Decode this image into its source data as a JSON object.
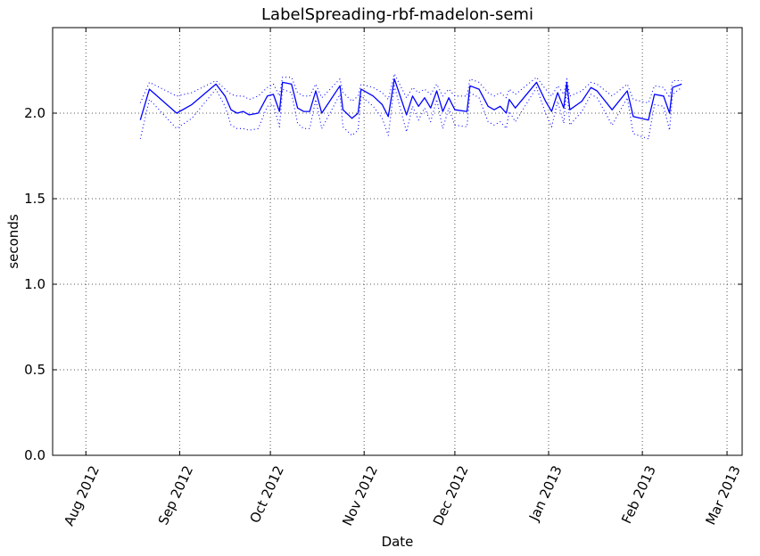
{
  "chart_data": {
    "type": "line",
    "title": "LabelSpreading-rbf-madelon-semi",
    "xlabel": "Date",
    "ylabel": "seconds",
    "x_axis": "date",
    "xlim": [
      "2012-07-21",
      "2013-03-06"
    ],
    "ylim": [
      0.0,
      2.5
    ],
    "grid": true,
    "x_ticks": [
      {
        "date": "2012-08-01",
        "label": "Aug 2012"
      },
      {
        "date": "2012-09-01",
        "label": "Sep 2012"
      },
      {
        "date": "2012-10-01",
        "label": "Oct 2012"
      },
      {
        "date": "2012-11-01",
        "label": "Nov 2012"
      },
      {
        "date": "2012-12-01",
        "label": "Dec 2012"
      },
      {
        "date": "2013-01-01",
        "label": "Jan 2013"
      },
      {
        "date": "2013-02-01",
        "label": "Feb 2013"
      },
      {
        "date": "2013-03-01",
        "label": "Mar 2013"
      }
    ],
    "y_ticks": [
      0.0,
      0.5,
      1.0,
      1.5,
      2.0
    ],
    "y_tick_labels": [
      "0.0",
      "0.5",
      "1.0",
      "1.5",
      "2.0"
    ],
    "colors": {
      "series": "#0000ff",
      "grid": "#555555"
    },
    "series": [
      {
        "style": "solid",
        "points": [
          [
            "2012-08-19",
            1.96
          ],
          [
            "2012-08-22",
            2.14
          ],
          [
            "2012-08-31",
            2.0
          ],
          [
            "2012-09-05",
            2.05
          ],
          [
            "2012-09-13",
            2.17
          ],
          [
            "2012-09-16",
            2.1
          ],
          [
            "2012-09-18",
            2.02
          ],
          [
            "2012-09-20",
            2.0
          ],
          [
            "2012-09-22",
            2.01
          ],
          [
            "2012-09-24",
            1.99
          ],
          [
            "2012-09-27",
            2.0
          ],
          [
            "2012-09-30",
            2.1
          ],
          [
            "2012-10-02",
            2.11
          ],
          [
            "2012-10-04",
            2.01
          ],
          [
            "2012-10-05",
            2.18
          ],
          [
            "2012-10-08",
            2.17
          ],
          [
            "2012-10-10",
            2.03
          ],
          [
            "2012-10-12",
            2.01
          ],
          [
            "2012-10-14",
            2.01
          ],
          [
            "2012-10-16",
            2.13
          ],
          [
            "2012-10-18",
            2.0
          ],
          [
            "2012-10-24",
            2.16
          ],
          [
            "2012-10-25",
            2.02
          ],
          [
            "2012-10-28",
            1.97
          ],
          [
            "2012-10-30",
            2.0
          ],
          [
            "2012-10-31",
            2.14
          ],
          [
            "2012-11-04",
            2.1
          ],
          [
            "2012-11-07",
            2.05
          ],
          [
            "2012-11-09",
            1.98
          ],
          [
            "2012-11-11",
            2.2
          ],
          [
            "2012-11-15",
            1.99
          ],
          [
            "2012-11-17",
            2.1
          ],
          [
            "2012-11-19",
            2.04
          ],
          [
            "2012-11-21",
            2.09
          ],
          [
            "2012-11-23",
            2.03
          ],
          [
            "2012-11-25",
            2.13
          ],
          [
            "2012-11-27",
            2.01
          ],
          [
            "2012-11-29",
            2.09
          ],
          [
            "2012-12-01",
            2.02
          ],
          [
            "2012-12-05",
            2.01
          ],
          [
            "2012-12-06",
            2.16
          ],
          [
            "2012-12-09",
            2.14
          ],
          [
            "2012-12-12",
            2.04
          ],
          [
            "2012-12-14",
            2.02
          ],
          [
            "2012-12-16",
            2.04
          ],
          [
            "2012-12-18",
            2.0
          ],
          [
            "2012-12-19",
            2.08
          ],
          [
            "2012-12-21",
            2.03
          ],
          [
            "2012-12-28",
            2.18
          ],
          [
            "2012-12-31",
            2.07
          ],
          [
            "2013-01-02",
            2.01
          ],
          [
            "2013-01-04",
            2.12
          ],
          [
            "2013-01-06",
            2.03
          ],
          [
            "2013-01-07",
            2.18
          ],
          [
            "2013-01-08",
            2.02
          ],
          [
            "2013-01-12",
            2.07
          ],
          [
            "2013-01-15",
            2.15
          ],
          [
            "2013-01-17",
            2.13
          ],
          [
            "2013-01-22",
            2.02
          ],
          [
            "2013-01-27",
            2.13
          ],
          [
            "2013-01-29",
            1.98
          ],
          [
            "2013-02-03",
            1.96
          ],
          [
            "2013-02-05",
            2.11
          ],
          [
            "2013-02-08",
            2.1
          ],
          [
            "2013-02-10",
            2.0
          ],
          [
            "2013-02-11",
            2.15
          ],
          [
            "2013-02-14",
            2.17
          ]
        ]
      },
      {
        "style": "dotted",
        "points": [
          [
            "2012-08-19",
            2.06
          ],
          [
            "2012-08-22",
            2.18
          ],
          [
            "2012-08-31",
            2.1
          ],
          [
            "2012-09-05",
            2.12
          ],
          [
            "2012-09-13",
            2.19
          ],
          [
            "2012-09-16",
            2.14
          ],
          [
            "2012-09-18",
            2.11
          ],
          [
            "2012-09-20",
            2.1
          ],
          [
            "2012-09-22",
            2.1
          ],
          [
            "2012-09-24",
            2.08
          ],
          [
            "2012-09-27",
            2.1
          ],
          [
            "2012-09-30",
            2.15
          ],
          [
            "2012-10-02",
            2.17
          ],
          [
            "2012-10-04",
            2.1
          ],
          [
            "2012-10-05",
            2.21
          ],
          [
            "2012-10-08",
            2.21
          ],
          [
            "2012-10-10",
            2.12
          ],
          [
            "2012-10-12",
            2.1
          ],
          [
            "2012-10-14",
            2.1
          ],
          [
            "2012-10-16",
            2.17
          ],
          [
            "2012-10-18",
            2.09
          ],
          [
            "2012-10-24",
            2.2
          ],
          [
            "2012-10-25",
            2.12
          ],
          [
            "2012-10-28",
            2.07
          ],
          [
            "2012-10-30",
            2.1
          ],
          [
            "2012-10-31",
            2.17
          ],
          [
            "2012-11-04",
            2.15
          ],
          [
            "2012-11-07",
            2.12
          ],
          [
            "2012-11-09",
            2.08
          ],
          [
            "2012-11-11",
            2.23
          ],
          [
            "2012-11-15",
            2.09
          ],
          [
            "2012-11-17",
            2.15
          ],
          [
            "2012-11-19",
            2.12
          ],
          [
            "2012-11-21",
            2.14
          ],
          [
            "2012-11-23",
            2.11
          ],
          [
            "2012-11-25",
            2.17
          ],
          [
            "2012-11-27",
            2.1
          ],
          [
            "2012-11-29",
            2.14
          ],
          [
            "2012-12-01",
            2.1
          ],
          [
            "2012-12-05",
            2.1
          ],
          [
            "2012-12-06",
            2.2
          ],
          [
            "2012-12-09",
            2.18
          ],
          [
            "2012-12-12",
            2.12
          ],
          [
            "2012-12-14",
            2.1
          ],
          [
            "2012-12-16",
            2.12
          ],
          [
            "2012-12-18",
            2.09
          ],
          [
            "2012-12-19",
            2.14
          ],
          [
            "2012-12-21",
            2.11
          ],
          [
            "2012-12-28",
            2.21
          ],
          [
            "2012-12-31",
            2.14
          ],
          [
            "2013-01-02",
            2.1
          ],
          [
            "2013-01-04",
            2.16
          ],
          [
            "2013-01-06",
            2.11
          ],
          [
            "2013-01-07",
            2.2
          ],
          [
            "2013-01-08",
            2.1
          ],
          [
            "2013-01-12",
            2.13
          ],
          [
            "2013-01-15",
            2.18
          ],
          [
            "2013-01-17",
            2.17
          ],
          [
            "2013-01-22",
            2.1
          ],
          [
            "2013-01-27",
            2.17
          ],
          [
            "2013-01-29",
            2.08
          ],
          [
            "2013-02-03",
            2.06
          ],
          [
            "2013-02-05",
            2.16
          ],
          [
            "2013-02-08",
            2.15
          ],
          [
            "2013-02-10",
            2.09
          ],
          [
            "2013-02-11",
            2.19
          ],
          [
            "2013-02-14",
            2.19
          ]
        ]
      },
      {
        "style": "dotted",
        "points": [
          [
            "2012-08-19",
            1.85
          ],
          [
            "2012-08-22",
            2.08
          ],
          [
            "2012-08-31",
            1.91
          ],
          [
            "2012-09-05",
            1.97
          ],
          [
            "2012-09-13",
            2.14
          ],
          [
            "2012-09-16",
            2.04
          ],
          [
            "2012-09-18",
            1.93
          ],
          [
            "2012-09-20",
            1.91
          ],
          [
            "2012-09-22",
            1.91
          ],
          [
            "2012-09-24",
            1.9
          ],
          [
            "2012-09-27",
            1.91
          ],
          [
            "2012-09-30",
            2.04
          ],
          [
            "2012-10-02",
            2.05
          ],
          [
            "2012-10-04",
            1.92
          ],
          [
            "2012-10-05",
            2.14
          ],
          [
            "2012-10-08",
            2.12
          ],
          [
            "2012-10-10",
            1.94
          ],
          [
            "2012-10-12",
            1.91
          ],
          [
            "2012-10-14",
            1.91
          ],
          [
            "2012-10-16",
            2.08
          ],
          [
            "2012-10-18",
            1.91
          ],
          [
            "2012-10-24",
            2.11
          ],
          [
            "2012-10-25",
            1.92
          ],
          [
            "2012-10-28",
            1.87
          ],
          [
            "2012-10-30",
            1.9
          ],
          [
            "2012-10-31",
            2.1
          ],
          [
            "2012-11-04",
            2.04
          ],
          [
            "2012-11-07",
            1.97
          ],
          [
            "2012-11-09",
            1.87
          ],
          [
            "2012-11-11",
            2.16
          ],
          [
            "2012-11-15",
            1.89
          ],
          [
            "2012-11-17",
            2.04
          ],
          [
            "2012-11-19",
            1.96
          ],
          [
            "2012-11-21",
            2.03
          ],
          [
            "2012-11-23",
            1.95
          ],
          [
            "2012-11-25",
            2.08
          ],
          [
            "2012-11-27",
            1.91
          ],
          [
            "2012-11-29",
            2.03
          ],
          [
            "2012-12-01",
            1.93
          ],
          [
            "2012-12-05",
            1.92
          ],
          [
            "2012-12-06",
            2.12
          ],
          [
            "2012-12-09",
            2.09
          ],
          [
            "2012-12-12",
            1.95
          ],
          [
            "2012-12-14",
            1.93
          ],
          [
            "2012-12-16",
            1.95
          ],
          [
            "2012-12-18",
            1.91
          ],
          [
            "2012-12-19",
            2.01
          ],
          [
            "2012-12-21",
            1.95
          ],
          [
            "2012-12-28",
            2.15
          ],
          [
            "2012-12-31",
            2.0
          ],
          [
            "2013-01-02",
            1.92
          ],
          [
            "2013-01-04",
            2.07
          ],
          [
            "2013-01-06",
            1.94
          ],
          [
            "2013-01-07",
            2.15
          ],
          [
            "2013-01-08",
            1.93
          ],
          [
            "2013-01-12",
            2.01
          ],
          [
            "2013-01-15",
            2.11
          ],
          [
            "2013-01-17",
            2.09
          ],
          [
            "2013-01-22",
            1.93
          ],
          [
            "2013-01-27",
            2.09
          ],
          [
            "2013-01-29",
            1.88
          ],
          [
            "2013-02-03",
            1.85
          ],
          [
            "2013-02-05",
            2.05
          ],
          [
            "2013-02-08",
            2.04
          ],
          [
            "2013-02-10",
            1.9
          ],
          [
            "2013-02-11",
            2.11
          ],
          [
            "2013-02-14",
            2.15
          ]
        ]
      }
    ]
  }
}
